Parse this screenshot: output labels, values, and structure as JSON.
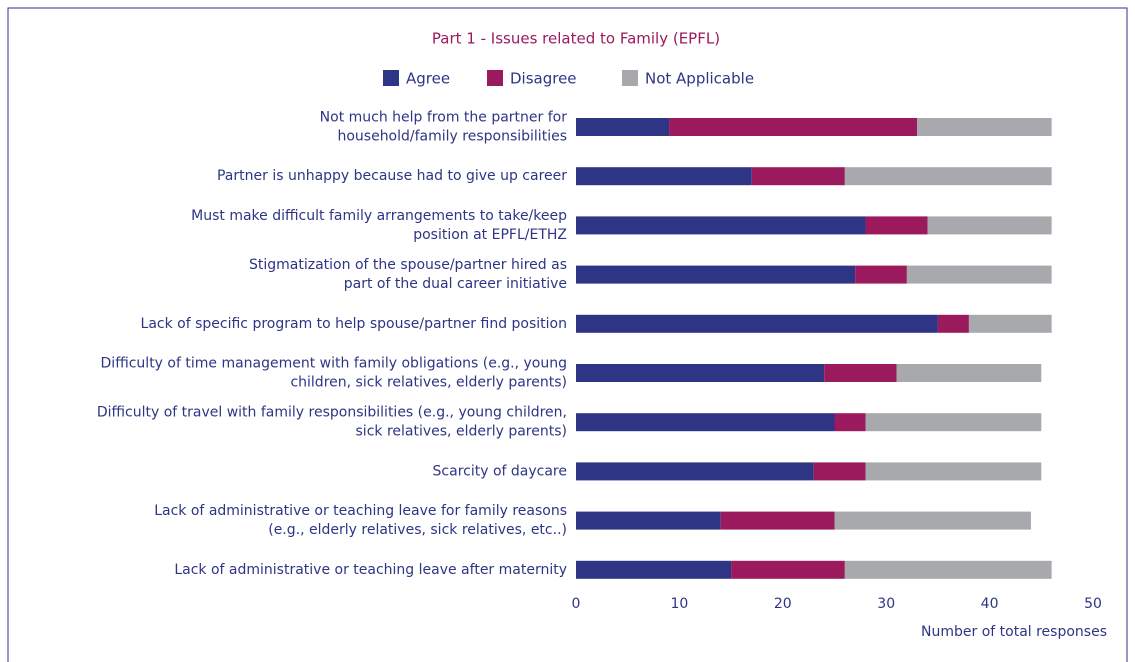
{
  "chart_data": {
    "type": "stacked-barh",
    "title": "Part 1 - Issues related to Family (EPFL)",
    "categories": [
      "Not much help from the partner for\nhousehold/family responsibilities",
      "Partner is unhappy because had to give up career",
      "Must make difficult family arrangements to take/keep\nposition at EPFL/ETHZ",
      "Stigmatization of the spouse/partner hired as\npart of the dual career initiative",
      "Lack of specific program to help spouse/partner find position",
      "Difficulty of time management with family obligations (e.g., young\nchildren, sick relatives, elderly parents)",
      "Difficulty of travel with family responsibilities (e.g., young children,\nsick relatives, elderly parents)",
      "Scarcity of daycare",
      "Lack of administrative or teaching leave for family reasons\n(e.g., elderly relatives, sick relatives, etc..)",
      "Lack of administrative or teaching leave after maternity"
    ],
    "series": [
      {
        "name": "Agree",
        "color": "#2e3585",
        "values": [
          9,
          17,
          28,
          27,
          35,
          24,
          25,
          23,
          14,
          15
        ]
      },
      {
        "name": "Disagree",
        "color": "#9b1a5e",
        "values": [
          24,
          9,
          6,
          5,
          3,
          7,
          3,
          5,
          11,
          11
        ]
      },
      {
        "name": "Not Applicable",
        "color": "#a7a9ac",
        "values": [
          13,
          20,
          12,
          14,
          8,
          14,
          17,
          17,
          19,
          20
        ]
      }
    ],
    "xlim": [
      0,
      50
    ],
    "xticks": [
      0,
      10,
      20,
      30,
      40,
      50
    ],
    "xlabel": "Number of total responses"
  }
}
